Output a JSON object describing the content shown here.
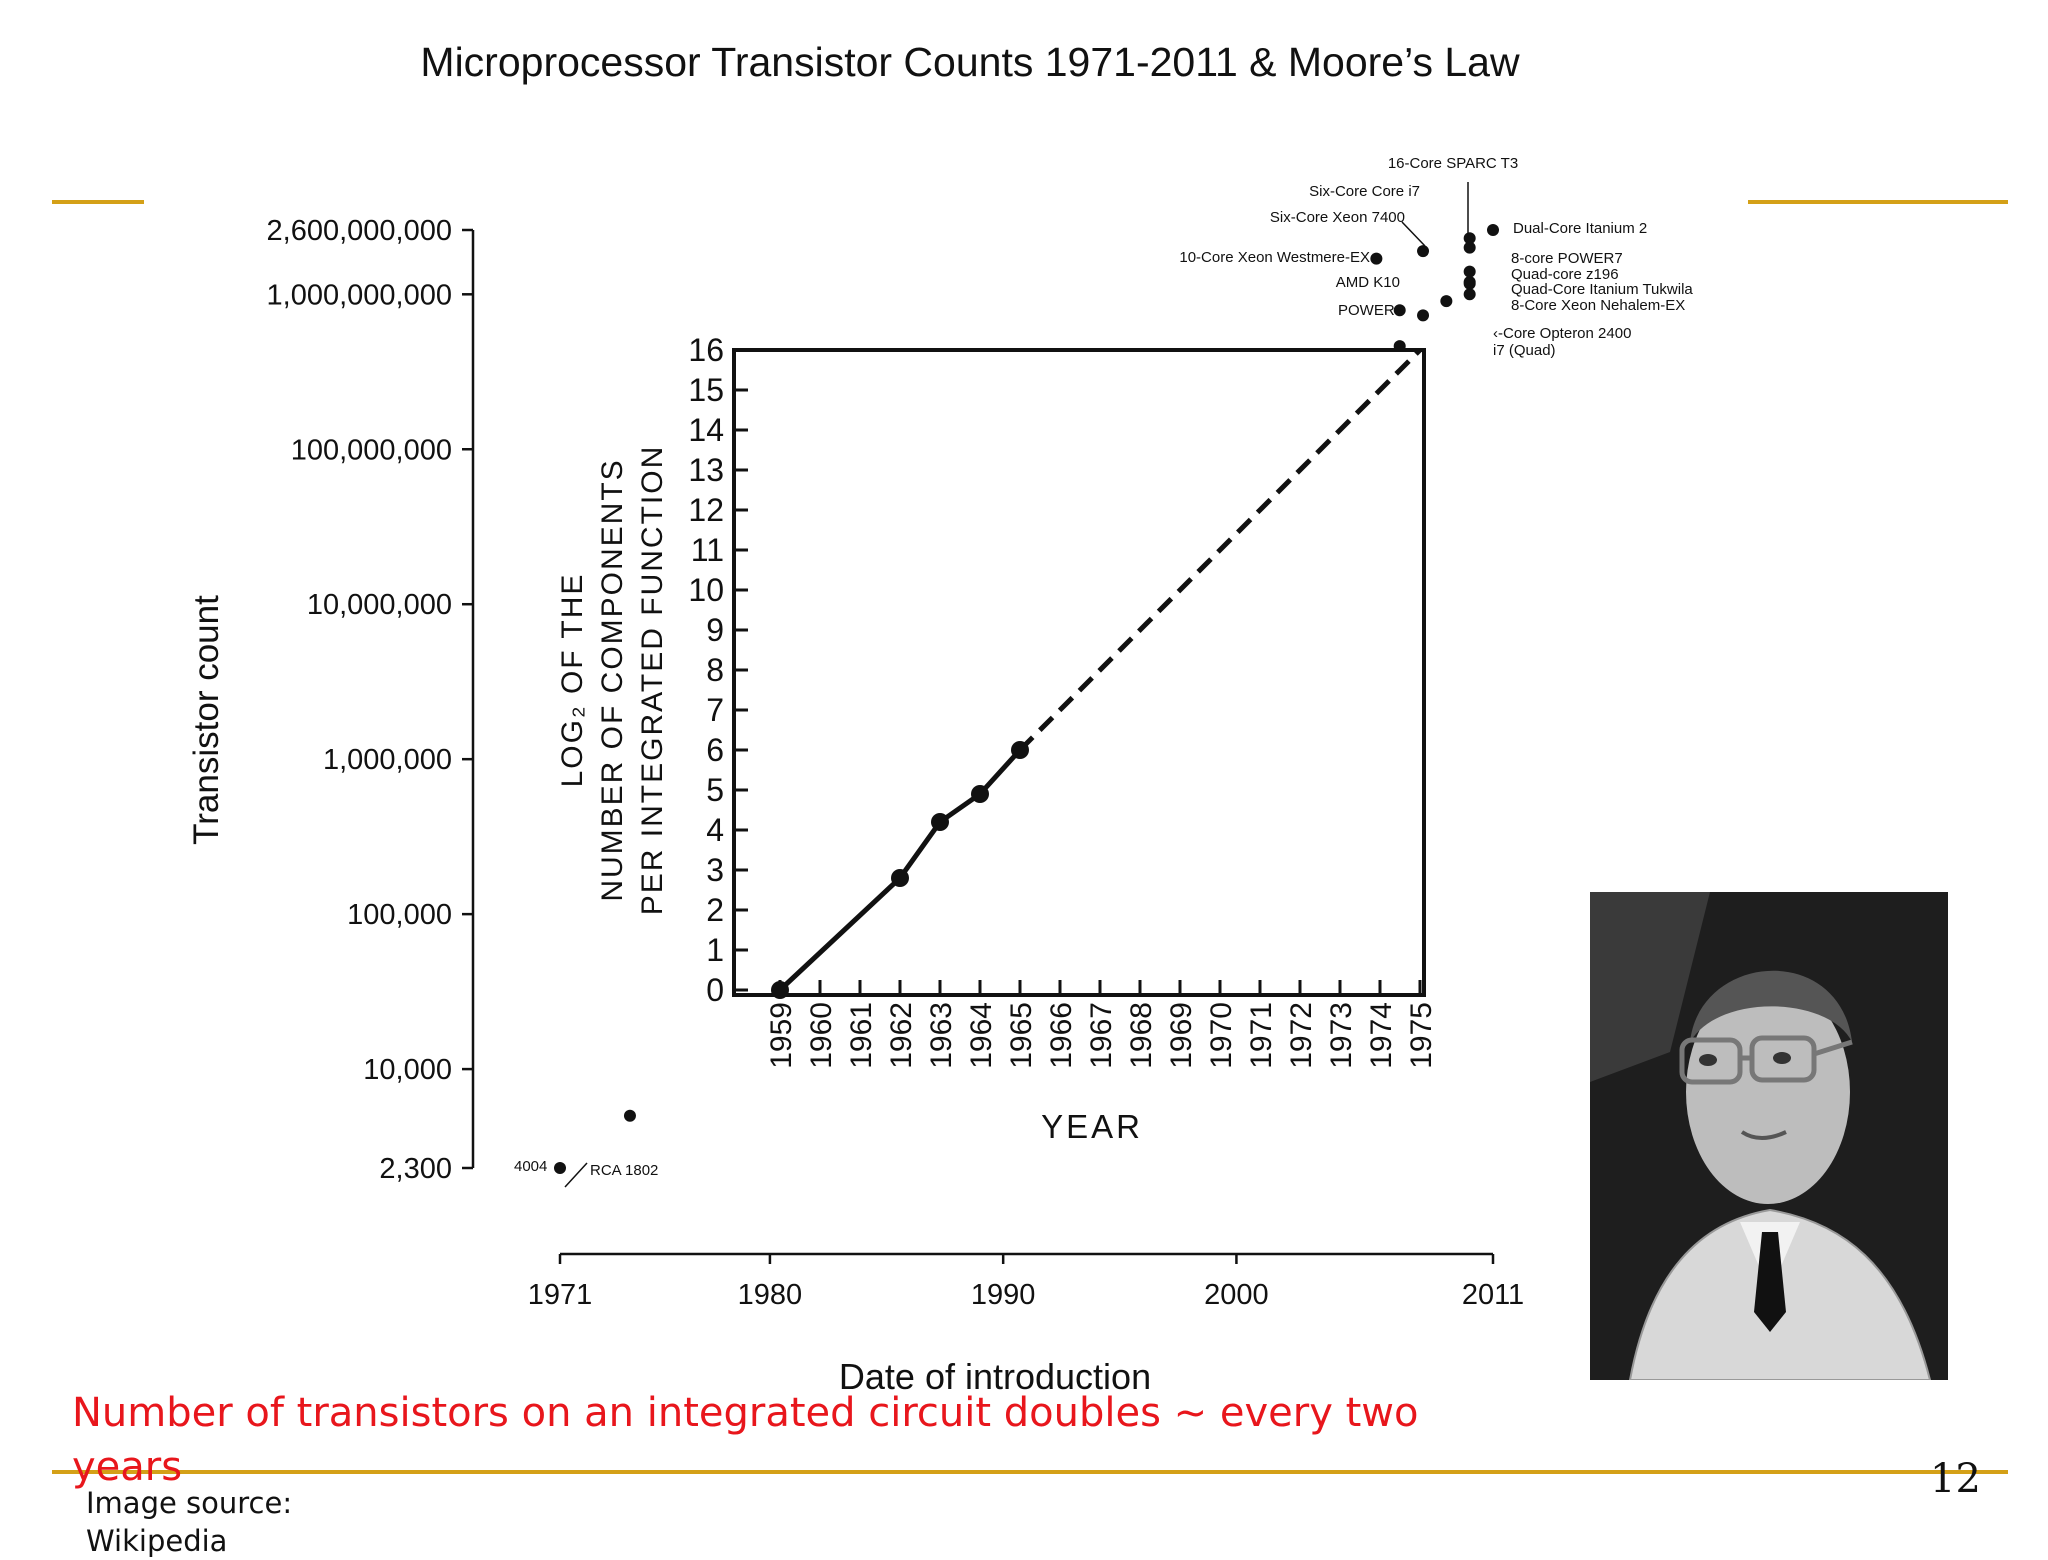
{
  "slide": {
    "statement": "Number of transistors on an integrated circuit doubles ~ every two years",
    "source_label": "Image source: Wikipedia",
    "page_number": "12",
    "accent_color": "#d4a017",
    "statement_color": "#e8161c"
  },
  "chart_data": [
    {
      "type": "scatter",
      "title": "Microprocessor Transistor Counts 1971-2011 & Moore’s Law",
      "xlabel": "Date of introduction",
      "ylabel": "Transistor count",
      "y_scale": "log",
      "y_ticks": [
        "2,600,000,000",
        "1,000,000,000",
        "100,000,000",
        "10,000,000",
        "1,000,000",
        "100,000",
        "10,000",
        "2,300"
      ],
      "x_ticks": [
        "1971",
        "1980",
        "1990",
        "2000",
        "2011"
      ],
      "series": [
        {
          "points": [
            {
              "label": "4004",
              "x": 1971,
              "y": 2300
            },
            {
              "label": "RCA 1802",
              "x": 1974,
              "y": 5000
            },
            {
              "label": "16-Core SPARC T3",
              "x": 2010,
              "y": 1000000000
            },
            {
              "label": "Six-Core Core i7",
              "x": 2010,
              "y": 1170000000
            },
            {
              "label": "Six-Core Xeon 7400",
              "x": 2008,
              "y": 1900000000
            },
            {
              "label": "10-Core Xeon Westmere-EX",
              "x": 2011,
              "y": 2600000000
            },
            {
              "label": "Dual-Core Itanium 2",
              "x": 2006,
              "y": 1700000000
            },
            {
              "label": "8-core POWER7",
              "x": 2010,
              "y": 1200000000
            },
            {
              "label": "Quad-core z196",
              "x": 2010,
              "y": 1400000000
            },
            {
              "label": "Quad-Core Itanium Tukwila",
              "x": 2010,
              "y": 2000000000
            },
            {
              "label": "8-Core Xeon Nehalem-EX",
              "x": 2010,
              "y": 2300000000
            },
            {
              "label": "AMD K10",
              "x": 2007,
              "y": 463000000
            },
            {
              "label": "POWER6",
              "x": 2007,
              "y": 789000000
            },
            {
              "label": "Six-Core Opteron 2400",
              "x": 2009,
              "y": 904000000
            },
            {
              "label": "Core i7 (Quad)",
              "x": 2008,
              "y": 731000000
            }
          ]
        }
      ],
      "visible_point_labels": [
        "16-Core SPARC T3",
        "Six-Core Core i7",
        "Six-Core Xeon 7400",
        "10-Core Xeon Westmere-EX",
        "Dual-Core Itanium 2",
        "8-core POWER7",
        "Quad-core z196",
        "AMD K10",
        "Quad-Core Itanium Tukwila",
        "8-Core Xeon Nehalem-EX",
        "POWER6",
        "‹-Core Opteron 2400",
        "i7 (Quad)",
        "4004",
        "RCA 1802"
      ]
    },
    {
      "type": "line",
      "xlabel": "YEAR",
      "ylabel_lines": [
        "LOG₂ OF THE",
        "NUMBER OF COMPONENTS",
        "PER INTEGRATED FUNCTION"
      ],
      "x": [
        1959,
        1960,
        1961,
        1962,
        1963,
        1964,
        1965,
        1966,
        1967,
        1968,
        1969,
        1970,
        1971,
        1972,
        1973,
        1974,
        1975
      ],
      "x_tick_labels": [
        "1959",
        "1960",
        "1961",
        "1962",
        "1963",
        "1964",
        "1965",
        "1966",
        "1967",
        "1968",
        "1969",
        "1970",
        "1971",
        "1972",
        "1973",
        "1974",
        "1975"
      ],
      "y_ticks": [
        0,
        1,
        2,
        3,
        4,
        5,
        6,
        7,
        8,
        9,
        10,
        11,
        12,
        13,
        14,
        15,
        16
      ],
      "ylim": [
        0,
        16
      ],
      "xlim": [
        1959,
        1975
      ],
      "series": [
        {
          "style": "solid",
          "points": [
            [
              1959,
              0
            ],
            [
              1962,
              2.8
            ],
            [
              1963,
              4.2
            ],
            [
              1964,
              4.9
            ],
            [
              1965,
              6
            ]
          ]
        },
        {
          "style": "dashed",
          "points": [
            [
              1965,
              6
            ],
            [
              1975,
              16
            ]
          ]
        }
      ]
    }
  ]
}
